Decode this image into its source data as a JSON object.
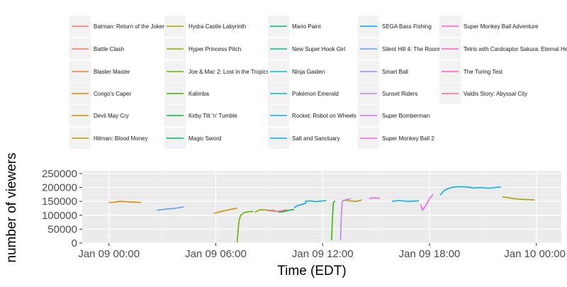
{
  "chart_data": {
    "type": "line",
    "title": "",
    "xlabel": "Time (EDT)",
    "ylabel": "number of viewers",
    "x_ticks": [
      "Jan 09 00:00",
      "Jan 09 06:00",
      "Jan 09 12:00",
      "Jan 09 18:00",
      "Jan 10 00:00"
    ],
    "x_range_hours": [
      -1.5,
      25.4
    ],
    "y_ticks": [
      "0",
      "50000",
      "100000",
      "150000",
      "200000",
      "250000"
    ],
    "y_tick_values": [
      0,
      50000,
      100000,
      150000,
      200000,
      250000
    ],
    "ylim": [
      0,
      260000
    ],
    "grid": true,
    "legend_position": "top",
    "legend_columns": 5,
    "series": [
      {
        "name": "Batman: Return of the Joker",
        "color": "#F8766D",
        "x": [],
        "values": []
      },
      {
        "name": "Battle Clash",
        "color": "#F37B59",
        "x": [],
        "values": []
      },
      {
        "name": "Blaster Master",
        "color": "#ED813E",
        "x": [],
        "values": []
      },
      {
        "name": "Congo's Caper",
        "color": "#E58700",
        "x": [
          0.0,
          0.3,
          0.6,
          0.9,
          1.2,
          1.5,
          1.8
        ],
        "values": [
          146000,
          147000,
          150000,
          149000,
          148000,
          147000,
          146000
        ]
      },
      {
        "name": "Devil May Cry",
        "color": "#CF9400",
        "x": [
          5.9,
          6.1,
          6.3,
          6.6,
          6.9,
          7.1,
          7.2
        ],
        "values": [
          107000,
          110000,
          114000,
          118000,
          122000,
          124000,
          126000
        ]
      },
      {
        "name": "Hitman: Blood Money",
        "color": "#B69D00",
        "x": [
          13.1,
          13.3,
          13.6,
          13.9,
          14.2
        ],
        "values": [
          152000,
          154000,
          151000,
          150000,
          155000
        ]
      },
      {
        "name": "Hydra Castle Labyrinth",
        "color": "#A3A500",
        "x": [
          22.1,
          22.4,
          22.7,
          23.0,
          23.3,
          23.6,
          23.9
        ],
        "values": [
          166000,
          164000,
          160000,
          158000,
          157000,
          156000,
          155000
        ]
      },
      {
        "name": "Hyper Princess Pitch",
        "color": "#8EAB00",
        "x": [
          8.2,
          8.3,
          8.5,
          8.8,
          9.1,
          9.3
        ],
        "values": [
          110000,
          115000,
          120000,
          119000,
          117000,
          118000
        ]
      },
      {
        "name": "Joe & Mac 2: Lost in the Tropics",
        "color": "#6BB100",
        "x": [
          7.2,
          7.3,
          7.4,
          7.6,
          7.9,
          8.1
        ],
        "values": [
          3000,
          80000,
          100000,
          110000,
          113000,
          114000
        ]
      },
      {
        "name": "Kalimba",
        "color": "#39B600",
        "x": [
          12.5,
          12.55,
          12.6,
          12.7
        ],
        "values": [
          10000,
          90000,
          145000,
          152000
        ]
      },
      {
        "name": "Kirby Tilt 'n' Tumble",
        "color": "#00BA38",
        "x": [
          9.5,
          9.8,
          10.1,
          10.4
        ],
        "values": [
          112000,
          113000,
          118000,
          121000
        ]
      },
      {
        "name": "Magic Sword",
        "color": "#00BD5C",
        "x": [],
        "values": []
      },
      {
        "name": "Mario Paint",
        "color": "#00BF7D",
        "x": [],
        "values": []
      },
      {
        "name": "New Super Hook Girl",
        "color": "#00C19A",
        "x": [],
        "values": []
      },
      {
        "name": "Ninja Gaiden",
        "color": "#00C0B5",
        "x": [],
        "values": []
      },
      {
        "name": "Pokémon Emerald",
        "color": "#00BDD0",
        "x": [
          11.0,
          11.3,
          11.6,
          11.9,
          12.2
        ],
        "values": [
          150000,
          152000,
          149000,
          151000,
          153000
        ]
      },
      {
        "name": "Rocket: Robot on Wheels",
        "color": "#00B8E7",
        "x": [
          15.9,
          16.2,
          16.5,
          16.8,
          17.1,
          17.4
        ],
        "values": [
          150000,
          153000,
          152000,
          150000,
          151000,
          152000
        ]
      },
      {
        "name": "Salt and Sanctuary",
        "color": "#00B0F6",
        "x": [
          18.6,
          18.8,
          19.0,
          19.3,
          19.7,
          20.1,
          20.5,
          20.9,
          21.3,
          21.7,
          22.0
        ],
        "values": [
          172000,
          188000,
          195000,
          201000,
          203000,
          202000,
          198000,
          200000,
          197000,
          200000,
          202000
        ]
      },
      {
        "name": "SEGA Bass Fishing",
        "color": "#00A7FF",
        "x": [
          10.4,
          10.6,
          10.9,
          11.1
        ],
        "values": [
          127000,
          135000,
          140000,
          145000
        ]
      },
      {
        "name": "Silent Hill 4: The Room",
        "color": "#619CFF",
        "x": [
          2.7,
          3.2,
          3.7,
          4.2
        ],
        "values": [
          118000,
          122000,
          125000,
          130000
        ]
      },
      {
        "name": "Smart Ball",
        "color": "#9590FF",
        "x": [],
        "values": []
      },
      {
        "name": "Sunset Riders",
        "color": "#B983FF",
        "x": [
          13.0,
          13.05,
          13.1,
          13.3,
          13.6
        ],
        "values": [
          10000,
          100000,
          150000,
          156000,
          160000
        ]
      },
      {
        "name": "Super Bomberman",
        "color": "#DB72FB",
        "x": [],
        "values": []
      },
      {
        "name": "Super Monkey Ball 2",
        "color": "#EF67EB",
        "x": [
          17.5,
          17.6,
          17.8,
          18.0,
          18.2
        ],
        "values": [
          140000,
          118000,
          135000,
          160000,
          175000
        ]
      },
      {
        "name": "Super Monkey Ball Adventure",
        "color": "#FA62DB",
        "x": [],
        "values": []
      },
      {
        "name": "Tetris with Cardcaptor Sakura: Eternal Heart",
        "color": "#FF61C7",
        "x": [
          14.6,
          14.9,
          15.2
        ],
        "values": [
          160000,
          163000,
          161000
        ]
      },
      {
        "name": "The Turing Test",
        "color": "#FF63B6",
        "x": [],
        "values": []
      },
      {
        "name": "Valdis Story: Abyssal City",
        "color": "#FF6A98",
        "x": [
          8.9,
          9.5,
          10.0
        ],
        "values": [
          117000,
          114000,
          120000
        ]
      }
    ]
  }
}
